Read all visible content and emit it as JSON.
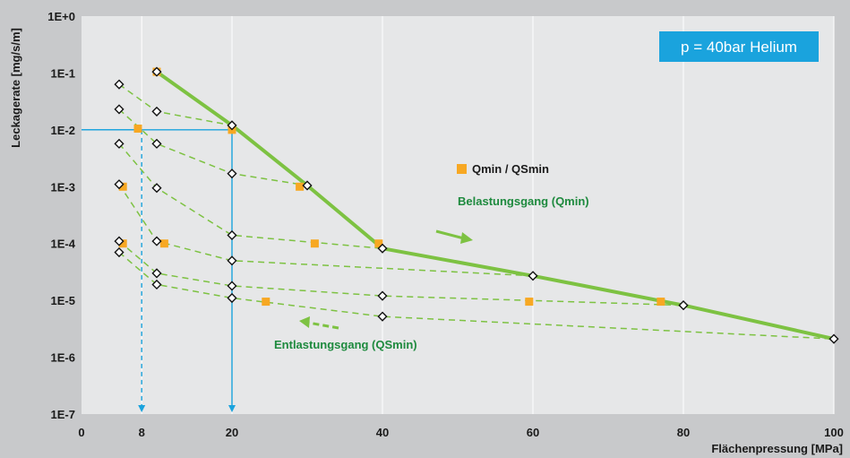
{
  "chart_data": {
    "type": "line",
    "xlabel": "Flächenpressung [MPa]",
    "ylabel": "Leckagerate [mg/s/m]",
    "xlim": [
      0,
      100
    ],
    "ylim": [
      1e-07,
      1
    ],
    "y_scale": "log",
    "x_ticks": [
      {
        "value": 0,
        "label": "0"
      },
      {
        "value": 8,
        "label": "8"
      },
      {
        "value": 20,
        "label": "20"
      },
      {
        "value": 40,
        "label": "40"
      },
      {
        "value": 60,
        "label": "60"
      },
      {
        "value": 80,
        "label": "80"
      },
      {
        "value": 100,
        "label": "100"
      }
    ],
    "y_ticks": [
      {
        "value": 1,
        "label": "1E+0"
      },
      {
        "value": 0.1,
        "label": "1E-1"
      },
      {
        "value": 0.01,
        "label": "1E-2"
      },
      {
        "value": 0.001,
        "label": "1E-3"
      },
      {
        "value": 0.0001,
        "label": "1E-4"
      },
      {
        "value": 1e-05,
        "label": "1E-5"
      },
      {
        "value": 1e-06,
        "label": "1E-6"
      },
      {
        "value": 1e-07,
        "label": "1E-7"
      }
    ],
    "grid": {
      "vertical": true,
      "horizontal": false
    },
    "colors": {
      "background": "#c8c9cb",
      "loading_line": "#7dc242",
      "unloading_line": "#7dc242",
      "qmin_marker": "#f7a823",
      "reference_line": "#1aa3dd",
      "badge": "#1aa3dd",
      "annotation_text": "#1e8a3e"
    },
    "loading": {
      "x": [
        10,
        20,
        30,
        40,
        60,
        80,
        100
      ],
      "y": [
        0.105,
        0.012,
        0.00105,
        8.2e-05,
        2.7e-05,
        8.2e-06,
        2.1e-06
      ]
    },
    "unloading": [
      {
        "x": [
          5,
          10,
          20
        ],
        "y": [
          0.063,
          0.021,
          0.012
        ]
      },
      {
        "x": [
          5,
          10,
          20,
          30
        ],
        "y": [
          0.023,
          0.0057,
          0.0017,
          0.00105
        ]
      },
      {
        "x": [
          5,
          10,
          20,
          40
        ],
        "y": [
          0.0057,
          0.00095,
          0.00014,
          8.2e-05
        ]
      },
      {
        "x": [
          5,
          10,
          20,
          60
        ],
        "y": [
          0.0011,
          0.00011,
          5e-05,
          2.7e-05
        ]
      },
      {
        "x": [
          5,
          10,
          20,
          40,
          80
        ],
        "y": [
          0.00011,
          3e-05,
          1.8e-05,
          1.2e-05,
          8.2e-06
        ]
      },
      {
        "x": [
          5,
          10,
          20,
          40,
          100
        ],
        "y": [
          7e-05,
          1.9e-05,
          1.1e-05,
          5.2e-06,
          2.1e-06
        ]
      }
    ],
    "qmin_points": {
      "x": [
        10,
        7.5,
        20,
        29,
        39.5,
        5.5,
        5.5,
        11,
        31,
        24.5,
        59.5,
        77
      ],
      "y": [
        0.105,
        0.0105,
        0.01,
        0.001,
        0.0001,
        0.001,
        0.0001,
        0.0001,
        0.0001,
        9.5e-06,
        9.5e-06,
        9.5e-06
      ]
    },
    "reference_lines": [
      {
        "x": 8,
        "y": 0.01,
        "style": "dashed"
      },
      {
        "x": 20,
        "y": 0.01,
        "style": "solid"
      }
    ],
    "annotations": {
      "badge": "p = 40bar Helium",
      "legend_label": "Qmin / QSmin",
      "loading_label": "Belastungsgang (Qmin)",
      "unloading_label": "Entlastungsgang (QSmin)"
    }
  }
}
